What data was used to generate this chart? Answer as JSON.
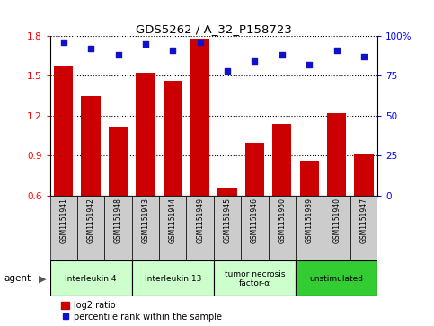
{
  "title": "GDS5262 / A_32_P158723",
  "samples": [
    "GSM1151941",
    "GSM1151942",
    "GSM1151948",
    "GSM1151943",
    "GSM1151944",
    "GSM1151949",
    "GSM1151945",
    "GSM1151946",
    "GSM1151950",
    "GSM1151939",
    "GSM1151940",
    "GSM1151947"
  ],
  "log2_ratio": [
    1.58,
    1.35,
    1.12,
    1.52,
    1.46,
    1.78,
    0.66,
    1.0,
    1.14,
    0.86,
    1.22,
    0.91
  ],
  "percentile": [
    96,
    92,
    88,
    95,
    91,
    96,
    78,
    84,
    88,
    82,
    91,
    87
  ],
  "ylim_left": [
    0.6,
    1.8
  ],
  "ylim_right": [
    0,
    100
  ],
  "yticks_left": [
    0.6,
    0.9,
    1.2,
    1.5,
    1.8
  ],
  "yticks_right": [
    0,
    25,
    50,
    75,
    100
  ],
  "ytick_labels_right": [
    "0",
    "25",
    "50",
    "75",
    "100%"
  ],
  "bar_color": "#cc0000",
  "dot_color": "#1111cc",
  "groups": [
    {
      "label": "interleukin 4",
      "start": 0,
      "end": 3,
      "color": "#ccffcc"
    },
    {
      "label": "interleukin 13",
      "start": 3,
      "end": 6,
      "color": "#ccffcc"
    },
    {
      "label": "tumor necrosis\nfactor-α",
      "start": 6,
      "end": 9,
      "color": "#ccffcc"
    },
    {
      "label": "unstimulated",
      "start": 9,
      "end": 12,
      "color": "#33cc33"
    }
  ],
  "agent_label": "agent",
  "legend_bar_label": "log2 ratio",
  "legend_dot_label": "percentile rank within the sample",
  "tick_area_color": "#cccccc",
  "bar_bottom": 0.6,
  "fig_width": 4.83,
  "fig_height": 3.63,
  "dpi": 100
}
